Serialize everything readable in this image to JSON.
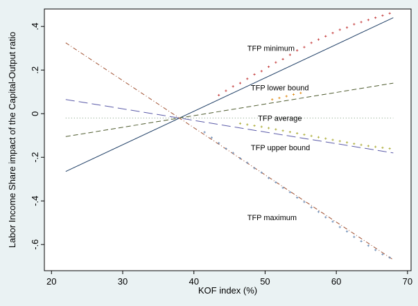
{
  "chart_data": {
    "type": "line",
    "xlabel": "KOF index (%)",
    "ylabel": "Labor Income Share impact of the Capital-Output ratio",
    "xlim": [
      19,
      70.5
    ],
    "ylim": [
      -0.72,
      0.48
    ],
    "xticks": [
      20,
      30,
      40,
      50,
      60,
      70
    ],
    "yticks": [
      0.4,
      0.2,
      0,
      -0.2,
      -0.4,
      -0.6
    ],
    "ytick_labels": [
      ".4",
      ".2",
      "0",
      "-.2",
      "-.4",
      "-.6"
    ],
    "grid": false,
    "series": [
      {
        "name": "TFP minimum",
        "color": "#1f3f66",
        "style": "solid",
        "x": [
          22,
          68
        ],
        "y": [
          -0.265,
          0.44
        ]
      },
      {
        "name": "TFP lower bound",
        "color": "#4d5a2d",
        "style": "dash",
        "x": [
          22,
          68
        ],
        "y": [
          -0.105,
          0.14
        ]
      },
      {
        "name": "TFP average",
        "color": "#7a9a7a",
        "style": "dot",
        "x": [
          22,
          68
        ],
        "y": [
          -0.02,
          -0.02
        ]
      },
      {
        "name": "TFP upper bound",
        "color": "#5a5aa8",
        "style": "longdash",
        "x": [
          22,
          68
        ],
        "y": [
          0.065,
          -0.18
        ]
      },
      {
        "name": "TFP maximum",
        "color": "#a05030",
        "style": "dashdot",
        "x": [
          22,
          68
        ],
        "y": [
          0.325,
          -0.67
        ]
      }
    ],
    "scatter": [
      {
        "color": "#c84848",
        "x": [
          43.5,
          44.5,
          45.5,
          46.5,
          47.5,
          48.5,
          49.5,
          50.5,
          51.5,
          52.5,
          53.5,
          54.5,
          55.5,
          56.5,
          57.5,
          58.5,
          59.5,
          60.5,
          61.5,
          62.5,
          63.5,
          64.5,
          65.5,
          66.5,
          67.5
        ],
        "y": [
          0.085,
          0.105,
          0.125,
          0.14,
          0.16,
          0.18,
          0.195,
          0.215,
          0.235,
          0.25,
          0.27,
          0.29,
          0.305,
          0.325,
          0.34,
          0.355,
          0.37,
          0.385,
          0.395,
          0.41,
          0.42,
          0.43,
          0.44,
          0.45,
          0.46
        ]
      },
      {
        "color": "#e09020",
        "x": [
          51,
          52,
          53,
          54,
          55
        ],
        "y": [
          0.065,
          0.072,
          0.08,
          0.088,
          0.095
        ]
      },
      {
        "color": "#b0b040",
        "x": [
          46.5,
          47.5,
          48.5,
          49.5,
          50.5,
          51.5,
          52.5,
          53.5,
          54.5,
          55.5,
          56.5,
          57.5,
          58.5,
          59.5,
          60.5,
          61.5,
          62.5,
          63.5,
          64.5,
          65.5,
          66.5,
          67.5
        ],
        "y": [
          -0.045,
          -0.05,
          -0.055,
          -0.06,
          -0.066,
          -0.072,
          -0.078,
          -0.084,
          -0.09,
          -0.096,
          -0.102,
          -0.108,
          -0.114,
          -0.12,
          -0.126,
          -0.132,
          -0.138,
          -0.143,
          -0.148,
          -0.152,
          -0.156,
          -0.16
        ]
      },
      {
        "color": "#7090b8",
        "x": [
          41.5,
          42.5,
          43.5,
          44.5,
          45.5,
          46.5,
          47.5,
          48.5,
          49.5,
          50.5,
          51.5,
          52.5,
          53.5,
          54.5,
          55.5,
          56.5,
          57.5,
          58.5,
          59.5,
          60.5,
          61.5,
          62.5,
          63.5,
          64.5,
          65.5,
          66.5,
          67.5
        ],
        "y": [
          -0.085,
          -0.11,
          -0.135,
          -0.16,
          -0.18,
          -0.205,
          -0.225,
          -0.25,
          -0.27,
          -0.295,
          -0.315,
          -0.34,
          -0.36,
          -0.385,
          -0.405,
          -0.43,
          -0.45,
          -0.475,
          -0.495,
          -0.52,
          -0.54,
          -0.565,
          -0.585,
          -0.605,
          -0.625,
          -0.645,
          -0.66
        ]
      }
    ],
    "annotations": [
      {
        "text": "TFP minimum",
        "x": 47.5,
        "y": 0.3
      },
      {
        "text": "TFP lower bound",
        "x": 48,
        "y": 0.12
      },
      {
        "text": "TFP average",
        "x": 49,
        "y": -0.02
      },
      {
        "text": "TFP upper bound",
        "x": 48,
        "y": -0.155
      },
      {
        "text": "TFP maximum",
        "x": 47.5,
        "y": -0.475
      }
    ]
  }
}
